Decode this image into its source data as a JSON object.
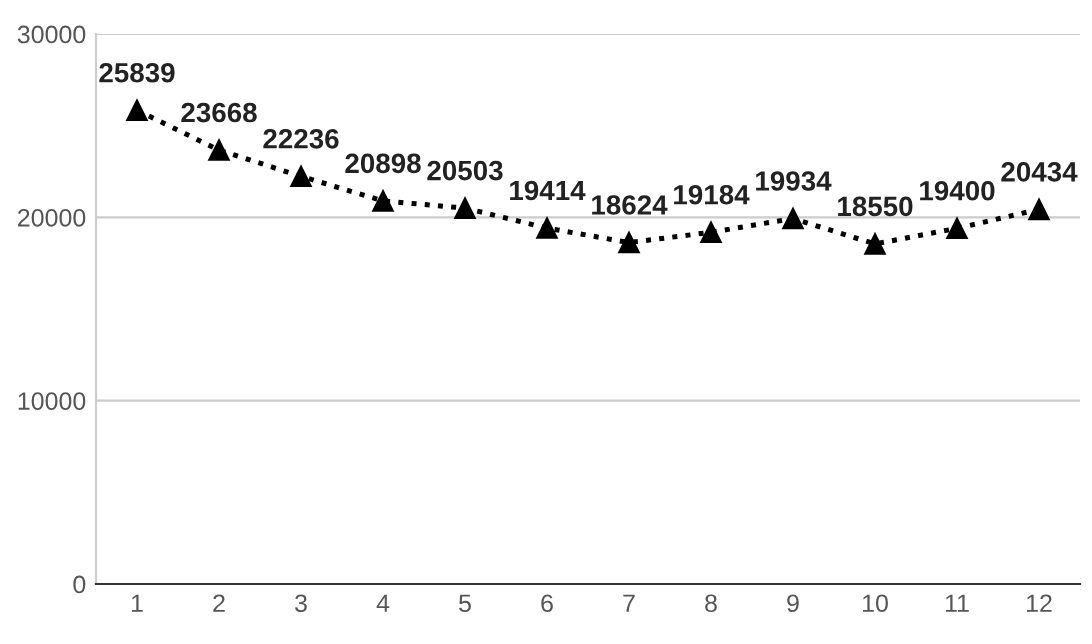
{
  "chart_data": {
    "type": "line",
    "categories": [
      "1",
      "2",
      "3",
      "4",
      "5",
      "6",
      "7",
      "8",
      "9",
      "10",
      "11",
      "12"
    ],
    "series": [
      {
        "color": "#000000",
        "values": [
          25839,
          23668,
          22236,
          20898,
          20503,
          19414,
          18624,
          19184,
          19934,
          18550,
          19400,
          20434
        ]
      }
    ],
    "ylim": [
      0,
      30000
    ],
    "yticks": [
      0,
      10000,
      20000,
      30000
    ],
    "grid": "y",
    "marker": "triangle",
    "line_style": "dotted",
    "data_labels": true
  }
}
